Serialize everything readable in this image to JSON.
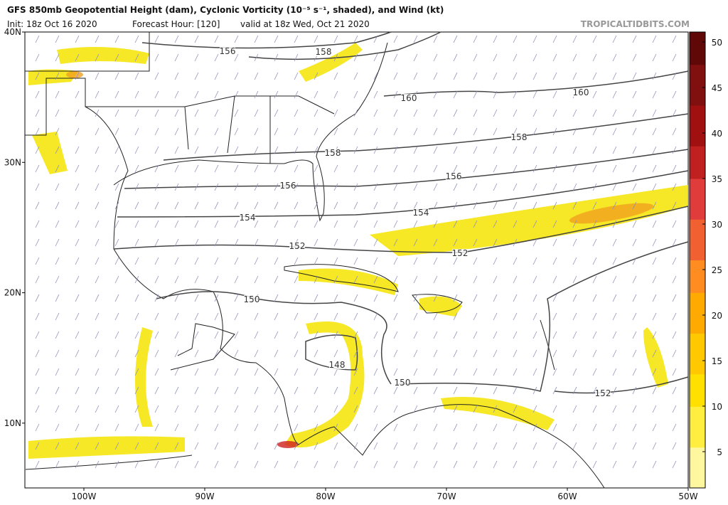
{
  "header": {
    "title": "GFS 850mb Geopotential Height (dam), Cyclonic Vorticity (10⁻⁵ s⁻¹, shaded), and Wind (kt)",
    "init": "Init: 18z Oct 16 2020",
    "forecast": "Forecast Hour: [120]",
    "valid": "valid at 18z Wed, Oct 21 2020",
    "source": "TROPICALTIDBITS.COM"
  },
  "map": {
    "lat_labels": [
      "40N",
      "30N",
      "20N",
      "10N"
    ],
    "lon_labels": [
      "100W",
      "90W",
      "80W",
      "70W",
      "60W",
      "50W"
    ],
    "contour_labels": [
      "156",
      "158",
      "160",
      "160",
      "158",
      "158",
      "156",
      "156",
      "154",
      "154",
      "152",
      "152",
      "150",
      "148",
      "150",
      "152"
    ]
  },
  "colorbar": {
    "labels": [
      5,
      10,
      15,
      20,
      25,
      30,
      35,
      40,
      45,
      50
    ]
  }
}
